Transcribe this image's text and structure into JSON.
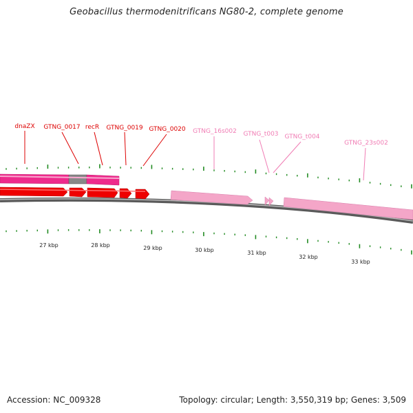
{
  "title": "Geobacillus thermodenitrificans NG80-2, complete genome",
  "footer": {
    "accession": "Accession: NC_009328",
    "topology": "Topology: circular; Length: 3,550,319 bp; Genes: 3,509"
  },
  "colors": {
    "cds": "#ee0000",
    "gene_top": "#ee2a8c",
    "gene_gray": "#888888",
    "rna": "#f4a6c8",
    "rna_label": "#f07cb4",
    "tick": "#228b22",
    "backbone": "#888888"
  },
  "scale": {
    "unit": "kbp",
    "labels": [
      "27 kbp",
      "28 kbp",
      "29 kbp",
      "30 kbp",
      "31 kbp",
      "32 kbp",
      "33 kbp"
    ]
  },
  "gene_labels": [
    {
      "name": "dnaZX",
      "type": "cds"
    },
    {
      "name": "GTNG_0017",
      "type": "cds"
    },
    {
      "name": "recR",
      "type": "cds"
    },
    {
      "name": "GTNG_0019",
      "type": "cds"
    },
    {
      "name": "GTNG_0020",
      "type": "cds"
    },
    {
      "name": "GTNG_16s002",
      "type": "rna"
    },
    {
      "name": "GTNG_t003",
      "type": "rna"
    },
    {
      "name": "GTNG_t004",
      "type": "rna"
    },
    {
      "name": "GTNG_23s002",
      "type": "rna"
    }
  ]
}
